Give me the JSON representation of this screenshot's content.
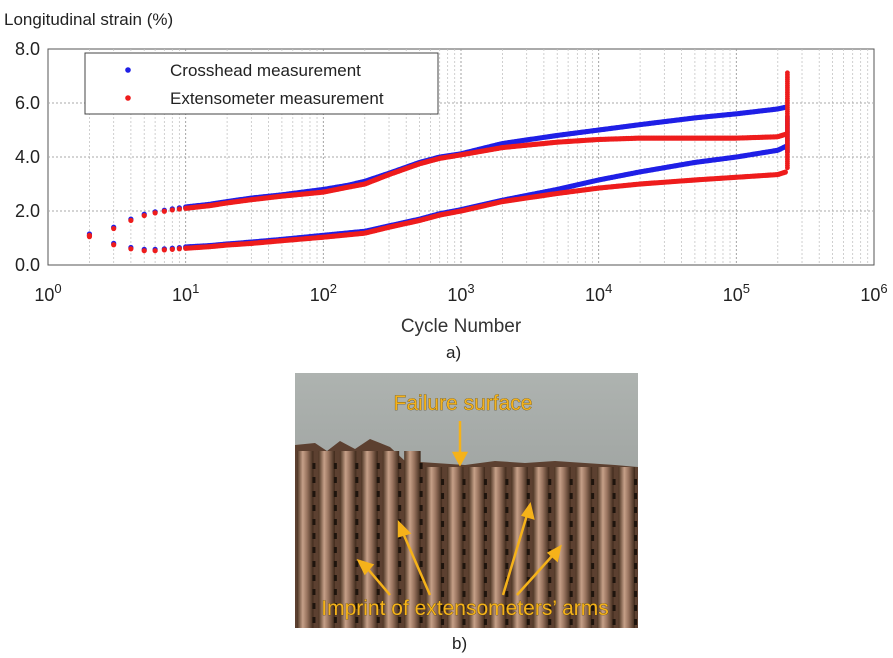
{
  "figure": {
    "caption_a": "a)",
    "caption_b": "b)"
  },
  "chart_data": {
    "type": "scatter",
    "title": "",
    "ylabel": "Longitudinal strain (%)",
    "xlabel": "Cycle Number",
    "x_scale": "log",
    "xlim": [
      1,
      1000000
    ],
    "ylim": [
      0,
      8
    ],
    "y_ticks": [
      "0.0",
      "2.0",
      "4.0",
      "6.0",
      "8.0"
    ],
    "x_tick_bases": [
      "10",
      "10",
      "10",
      "10",
      "10",
      "10",
      "10"
    ],
    "x_tick_exps": [
      "0",
      "1",
      "2",
      "3",
      "4",
      "5",
      "6"
    ],
    "grid": true,
    "legend_position": "top-left",
    "colors": {
      "crosshead": "#1f1fe6",
      "extensometer": "#ee1c1c"
    },
    "series": [
      {
        "name": "Crosshead measurement",
        "color": "#1f1fe6",
        "branches": {
          "max": [
            [
              2,
              1.15
            ],
            [
              3,
              1.4
            ],
            [
              4,
              1.7
            ],
            [
              5,
              1.88
            ],
            [
              6,
              1.97
            ],
            [
              7,
              2.03
            ],
            [
              8,
              2.08
            ],
            [
              10,
              2.15
            ],
            [
              15,
              2.25
            ],
            [
              20,
              2.35
            ],
            [
              30,
              2.48
            ],
            [
              50,
              2.6
            ],
            [
              100,
              2.8
            ],
            [
              150,
              2.95
            ],
            [
              200,
              3.1
            ],
            [
              300,
              3.4
            ],
            [
              500,
              3.8
            ],
            [
              700,
              4.0
            ],
            [
              1000,
              4.12
            ],
            [
              2000,
              4.5
            ],
            [
              5000,
              4.8
            ],
            [
              10000,
              5.0
            ],
            [
              20000,
              5.2
            ],
            [
              50000,
              5.45
            ],
            [
              100000,
              5.6
            ],
            [
              200000,
              5.78
            ],
            [
              230000,
              5.85
            ]
          ],
          "min": [
            [
              2,
              1.1
            ],
            [
              3,
              0.8
            ],
            [
              4,
              0.65
            ],
            [
              5,
              0.58
            ],
            [
              6,
              0.58
            ],
            [
              7,
              0.6
            ],
            [
              8,
              0.62
            ],
            [
              10,
              0.67
            ],
            [
              15,
              0.72
            ],
            [
              20,
              0.78
            ],
            [
              30,
              0.85
            ],
            [
              50,
              0.95
            ],
            [
              100,
              1.1
            ],
            [
              200,
              1.25
            ],
            [
              300,
              1.45
            ],
            [
              500,
              1.7
            ],
            [
              700,
              1.9
            ],
            [
              1000,
              2.05
            ],
            [
              2000,
              2.4
            ],
            [
              5000,
              2.8
            ],
            [
              10000,
              3.15
            ],
            [
              20000,
              3.45
            ],
            [
              50000,
              3.8
            ],
            [
              100000,
              4.0
            ],
            [
              200000,
              4.25
            ],
            [
              230000,
              4.4
            ]
          ]
        },
        "failure": [
          [
            235000,
            5.5
          ],
          [
            235000,
            4.2
          ]
        ]
      },
      {
        "name": "Extensometer measurement",
        "color": "#ee1c1c",
        "branches": {
          "max": [
            [
              2,
              1.1
            ],
            [
              3,
              1.35
            ],
            [
              4,
              1.65
            ],
            [
              5,
              1.83
            ],
            [
              6,
              1.93
            ],
            [
              7,
              1.99
            ],
            [
              8,
              2.04
            ],
            [
              10,
              2.1
            ],
            [
              15,
              2.2
            ],
            [
              20,
              2.3
            ],
            [
              30,
              2.42
            ],
            [
              50,
              2.55
            ],
            [
              100,
              2.7
            ],
            [
              150,
              2.88
            ],
            [
              200,
              3.0
            ],
            [
              300,
              3.35
            ],
            [
              500,
              3.75
            ],
            [
              700,
              3.95
            ],
            [
              1000,
              4.08
            ],
            [
              2000,
              4.35
            ],
            [
              5000,
              4.55
            ],
            [
              10000,
              4.65
            ],
            [
              20000,
              4.7
            ],
            [
              50000,
              4.7
            ],
            [
              100000,
              4.7
            ],
            [
              200000,
              4.75
            ],
            [
              230000,
              4.85
            ]
          ],
          "min": [
            [
              2,
              1.05
            ],
            [
              3,
              0.75
            ],
            [
              4,
              0.6
            ],
            [
              5,
              0.53
            ],
            [
              6,
              0.53
            ],
            [
              7,
              0.56
            ],
            [
              8,
              0.58
            ],
            [
              10,
              0.62
            ],
            [
              15,
              0.68
            ],
            [
              20,
              0.74
            ],
            [
              30,
              0.8
            ],
            [
              50,
              0.9
            ],
            [
              100,
              1.03
            ],
            [
              200,
              1.18
            ],
            [
              300,
              1.4
            ],
            [
              500,
              1.65
            ],
            [
              700,
              1.85
            ],
            [
              1000,
              2.0
            ],
            [
              2000,
              2.35
            ],
            [
              5000,
              2.65
            ],
            [
              10000,
              2.85
            ],
            [
              20000,
              3.0
            ],
            [
              50000,
              3.15
            ],
            [
              100000,
              3.25
            ],
            [
              200000,
              3.35
            ],
            [
              230000,
              3.45
            ]
          ]
        },
        "failure": [
          [
            235000,
            7.2
          ],
          [
            235000,
            3.6
          ]
        ]
      }
    ]
  },
  "photo": {
    "label_failure": "Failure surface",
    "label_imprint": "Imprint of extensometers’ arms"
  }
}
